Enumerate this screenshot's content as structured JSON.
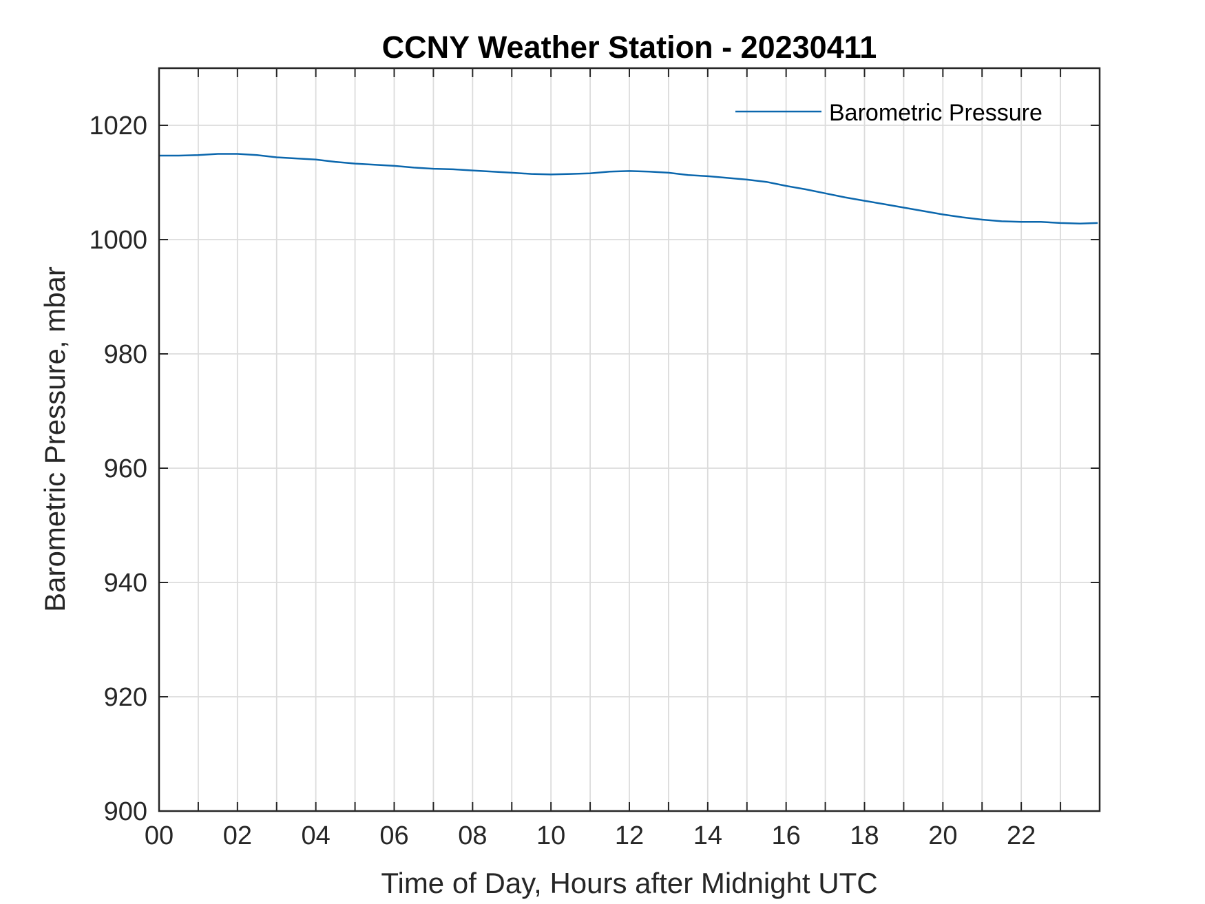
{
  "chart_data": {
    "type": "line",
    "title": "CCNY Weather Station - 20230411",
    "xlabel": "Time of Day, Hours after Midnight UTC",
    "ylabel": "Barometric Pressure, mbar",
    "xlim": [
      0,
      24
    ],
    "ylim": [
      900,
      1030
    ],
    "x_ticks": [
      0,
      2,
      4,
      6,
      8,
      10,
      12,
      14,
      16,
      18,
      20,
      22
    ],
    "x_tick_labels": [
      "00",
      "02",
      "04",
      "06",
      "08",
      "10",
      "12",
      "14",
      "16",
      "18",
      "20",
      "22"
    ],
    "x_minor_ticks": [
      1,
      3,
      5,
      7,
      9,
      11,
      13,
      15,
      17,
      19,
      21,
      23
    ],
    "y_ticks": [
      900,
      920,
      940,
      960,
      980,
      1000,
      1020
    ],
    "y_tick_labels": [
      "900",
      "920",
      "940",
      "960",
      "980",
      "1000",
      "1020"
    ],
    "grid": true,
    "legend_position": "top-right",
    "colors": {
      "series": "#0b67ad",
      "grid": "#dcdcdc",
      "axis": "#262626"
    },
    "series": [
      {
        "name": "Barometric Pressure",
        "x": [
          0,
          0.5,
          1.0,
          1.5,
          2.0,
          2.5,
          3.0,
          3.5,
          4.0,
          4.5,
          5.0,
          5.5,
          6.0,
          6.5,
          7.0,
          7.5,
          8.0,
          8.5,
          9.0,
          9.5,
          10.0,
          10.5,
          11.0,
          11.5,
          12.0,
          12.5,
          13.0,
          13.5,
          14.0,
          14.5,
          15.0,
          15.5,
          16.0,
          16.5,
          17.0,
          17.5,
          18.0,
          18.5,
          19.0,
          19.5,
          20.0,
          20.5,
          21.0,
          21.5,
          22.0,
          22.5,
          23.0,
          23.5,
          23.95
        ],
        "values": [
          1014.7,
          1014.7,
          1014.8,
          1015.0,
          1015.0,
          1014.8,
          1014.4,
          1014.2,
          1014.0,
          1013.6,
          1013.3,
          1013.1,
          1012.9,
          1012.6,
          1012.4,
          1012.3,
          1012.1,
          1011.9,
          1011.7,
          1011.5,
          1011.4,
          1011.5,
          1011.6,
          1011.9,
          1012.0,
          1011.9,
          1011.7,
          1011.3,
          1011.1,
          1010.8,
          1010.5,
          1010.1,
          1009.4,
          1008.8,
          1008.1,
          1007.4,
          1006.8,
          1006.2,
          1005.6,
          1005.0,
          1004.4,
          1003.9,
          1003.5,
          1003.2,
          1003.1,
          1003.1,
          1002.9,
          1002.8,
          1002.9
        ]
      }
    ]
  }
}
